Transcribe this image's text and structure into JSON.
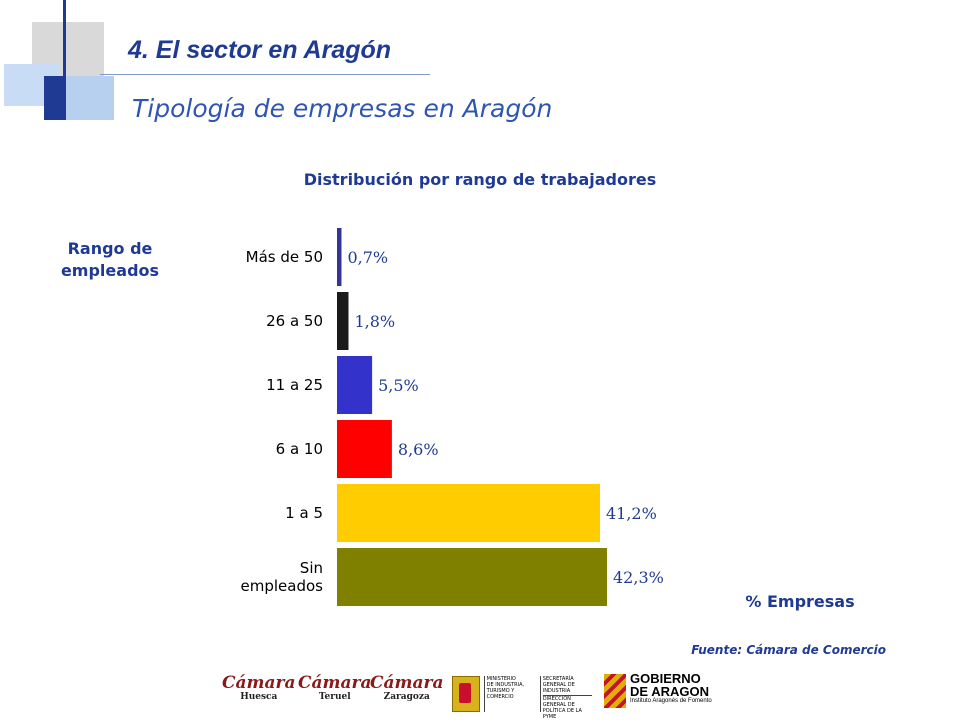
{
  "header": {
    "title": "4. El sector en Aragón",
    "subtitle": "Tipología de empresas en Aragón"
  },
  "chart_data": {
    "type": "bar",
    "orientation": "horizontal",
    "title": "Distribución por rango de trabajadores",
    "ylabel": "Rango de empleados",
    "xlabel": "% Empresas",
    "categories": [
      "Más de 50",
      "26 a 50",
      "11 a 25",
      "6 a 10",
      "1 a 5",
      "Sin empleados"
    ],
    "values": [
      0.7,
      1.8,
      5.5,
      8.6,
      41.2,
      42.3
    ],
    "value_labels": [
      "0,7%",
      "1,8%",
      "5,5%",
      "8,6%",
      "41,2%",
      "42,3%"
    ],
    "colors": [
      "#333399",
      "#1a1a1a",
      "#3333cc",
      "#ff0000",
      "#ffcc00",
      "#808000"
    ],
    "xlim": [
      0,
      42.3
    ],
    "grid": false,
    "legend": "none"
  },
  "source": "Fuente: Cámara de Comercio",
  "logos": {
    "camara_word": "Cámara",
    "camara_cities": [
      "Huesca",
      "Teruel",
      "Zaragoza"
    ],
    "ministerio": {
      "col1": [
        "MINISTERIO",
        "DE INDUSTRIA,",
        "TURISMO Y",
        "COMERCIO"
      ],
      "col2a": [
        "SECRETARÍA GENERAL DE",
        "INDUSTRIA"
      ],
      "col2b": [
        "DIRECCIÓN GENERAL DE",
        "POLÍTICA DE LA PYME"
      ]
    },
    "gobierno": {
      "line1": "GOBIERNO",
      "line2": "DE ARAGON",
      "sub": "Instituto Aragonés de Fomento"
    },
    "colors": {
      "camara": "#8a1a1a",
      "brand_blue": "#1f3a93"
    }
  }
}
